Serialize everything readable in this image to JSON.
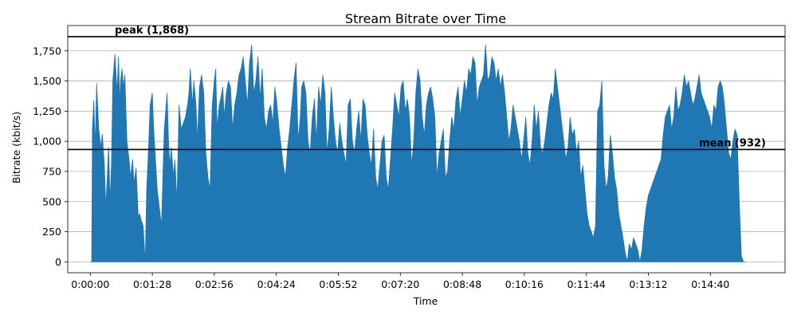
{
  "chart_data": {
    "type": "area",
    "title": "Stream Bitrate over Time",
    "xlabel": "Time",
    "ylabel": "Bitrate (kbit/s)",
    "x_unit": "seconds",
    "xlim": [
      -32,
      986
    ],
    "ylim": [
      -90,
      1960
    ],
    "yticks": [
      0,
      250,
      500,
      750,
      1000,
      1250,
      1500,
      1750
    ],
    "ytick_labels": [
      "0",
      "250",
      "500",
      "750",
      "1,000",
      "1,250",
      "1,500",
      "1,750"
    ],
    "xticks": [
      0,
      88,
      176,
      264,
      352,
      440,
      528,
      616,
      704,
      792,
      880
    ],
    "xtick_labels": [
      "0:00:00",
      "0:01:28",
      "0:02:56",
      "0:04:24",
      "0:05:52",
      "0:07:20",
      "0:08:48",
      "0:10:16",
      "0:11:44",
      "0:13:12",
      "0:14:40"
    ],
    "grid": "horizontal",
    "color": "#1f77b4",
    "reference_lines": [
      {
        "y": 1868,
        "label": "peak (1,868)",
        "label_position": "left"
      },
      {
        "y": 932,
        "label": "mean (932)",
        "label_position": "right"
      }
    ],
    "series": [
      {
        "x": [
          0,
          2,
          3,
          5,
          7,
          9,
          12,
          15,
          17,
          20,
          22,
          24,
          26,
          28,
          30,
          32,
          35,
          38,
          40,
          42,
          43,
          45,
          47,
          49,
          52,
          55,
          57,
          60,
          62,
          65,
          68,
          70,
          72,
          75,
          78,
          80,
          82,
          85,
          88,
          90,
          93,
          95,
          98,
          101,
          103,
          105,
          107,
          109,
          111,
          113,
          115,
          118,
          120,
          123,
          126,
          129,
          132,
          135,
          138,
          140,
          142,
          145,
          147,
          150,
          152,
          155,
          158,
          161,
          164,
          167,
          170,
          173,
          176,
          178,
          180,
          183,
          185,
          188,
          190,
          193,
          196,
          199,
          202,
          205,
          208,
          211,
          214,
          217,
          220,
          223,
          226,
          229,
          232,
          235,
          238,
          241,
          244,
          247,
          250,
          253,
          256,
          259,
          262,
          265,
          268,
          271,
          274,
          277,
          280,
          283,
          286,
          289,
          292,
          295,
          298,
          300,
          303,
          306,
          309,
          312,
          315,
          318,
          321,
          324,
          327,
          330,
          333,
          336,
          339,
          342,
          345,
          348,
          351,
          354,
          357,
          360,
          363,
          366,
          369,
          372,
          375,
          378,
          381,
          384,
          387,
          390,
          393,
          396,
          399,
          402,
          405,
          408,
          411,
          414,
          417,
          420,
          423,
          426,
          429,
          432,
          435,
          438,
          441,
          444,
          447,
          450,
          453,
          456,
          459,
          462,
          465,
          468,
          471,
          474,
          477,
          480,
          483,
          486,
          489,
          492,
          495,
          498,
          501,
          504,
          507,
          510,
          513,
          516,
          519,
          522,
          525,
          528,
          531,
          534,
          537,
          540,
          543,
          546,
          549,
          552,
          555,
          558,
          561,
          564,
          567,
          570,
          573,
          576,
          579,
          582,
          585,
          588,
          591,
          594,
          597,
          600,
          603,
          606,
          609,
          612,
          615,
          618,
          621,
          624,
          627,
          630,
          633,
          636,
          639,
          642,
          645,
          648,
          651,
          654,
          657,
          660,
          663,
          666,
          669,
          672,
          675,
          678,
          681,
          684,
          687,
          690,
          693,
          696,
          699,
          702,
          705,
          708,
          711,
          714,
          717,
          720,
          723,
          726,
          729,
          732,
          735,
          738,
          741,
          744,
          747,
          750,
          753,
          756,
          759,
          762,
          765,
          768,
          771,
          774,
          777,
          780,
          783,
          786,
          789,
          792,
          795,
          798,
          801,
          804,
          807,
          810,
          813,
          816,
          819,
          822,
          825,
          828,
          831,
          834,
          837,
          840,
          843,
          846,
          849,
          852,
          855,
          858,
          861,
          864,
          867,
          870,
          873,
          876,
          879,
          882,
          885,
          888,
          891,
          894,
          897,
          900,
          903,
          906,
          909,
          912,
          915,
          918,
          921,
          924,
          927,
          930
        ],
        "values": [
          0,
          0,
          1100,
          1340,
          950,
          1480,
          1100,
          950,
          1060,
          800,
          450,
          700,
          950,
          500,
          800,
          1500,
          1720,
          1400,
          1700,
          1300,
          1500,
          1600,
          1450,
          1550,
          1000,
          850,
          700,
          850,
          650,
          780,
          380,
          400,
          350,
          300,
          0,
          600,
          850,
          1300,
          1400,
          1100,
          800,
          600,
          450,
          300,
          700,
          1100,
          1250,
          1400,
          1000,
          800,
          950,
          700,
          850,
          500,
          1300,
          1100,
          1150,
          1200,
          1300,
          1400,
          1600,
          1300,
          1500,
          1300,
          1000,
          1450,
          1550,
          1400,
          900,
          700,
          600,
          1300,
          1500,
          1600,
          1100,
          1300,
          1350,
          1450,
          1200,
          1400,
          1500,
          1450,
          1100,
          1300,
          1400,
          1550,
          1600,
          1700,
          1500,
          1300,
          1650,
          1800,
          1400,
          1500,
          1700,
          1350,
          1600,
          1200,
          1100,
          1250,
          1300,
          1150,
          1450,
          1300,
          1100,
          950,
          800,
          700,
          950,
          1100,
          1300,
          1500,
          1650,
          1000,
          1200,
          1450,
          1500,
          1400,
          1000,
          900,
          1200,
          1350,
          1000,
          1450,
          1300,
          1550,
          1400,
          900,
          1100,
          1450,
          1200,
          1000,
          900,
          1150,
          1000,
          900,
          800,
          1300,
          1350,
          1000,
          900,
          1100,
          1250,
          1000,
          1350,
          1300,
          1050,
          900,
          800,
          1100,
          700,
          600,
          800,
          1000,
          1050,
          700,
          600,
          850,
          1100,
          1400,
          1300,
          1200,
          1450,
          1500,
          1250,
          1350,
          1200,
          800,
          1000,
          1400,
          1600,
          1500,
          1200,
          1050,
          1300,
          1400,
          1450,
          1350,
          1200,
          700,
          900,
          1000,
          1100,
          700,
          750,
          1000,
          1200,
          1100,
          1350,
          1450,
          1200,
          1350,
          1500,
          1400,
          1600,
          1550,
          1700,
          1650,
          1300,
          1450,
          1500,
          1550,
          1800,
          1500,
          1550,
          1700,
          1650,
          1500,
          1600,
          1450,
          1550,
          1400,
          1200,
          1000,
          1100,
          1300,
          1200,
          1100,
          1000,
          850,
          1000,
          1200,
          900,
          800,
          1000,
          1300,
          1100,
          1250,
          950,
          900,
          1000,
          1150,
          1300,
          1400,
          1350,
          1600,
          1450,
          1300,
          1150,
          1000,
          850,
          950,
          1200,
          1050,
          1100,
          900,
          1000,
          700,
          800,
          600,
          400,
          300,
          250,
          200,
          300,
          1250,
          1300,
          1500,
          800,
          600,
          700,
          1050,
          900,
          700,
          600,
          400,
          300,
          200,
          80,
          0,
          150,
          100,
          200,
          150,
          100,
          0,
          100,
          300,
          450,
          550,
          600,
          650,
          700,
          750,
          800,
          850,
          1050,
          1200,
          1250,
          1300,
          1100,
          1200,
          1450,
          1250,
          1300,
          1400,
          1550,
          1450,
          1500,
          1400,
          1300,
          1350,
          1450,
          1550,
          1400,
          1350,
          1300,
          1250,
          1200,
          1100,
          1300,
          1250,
          1450,
          1500,
          1450,
          1300,
          1100,
          900,
          850,
          1000,
          1100,
          1050,
          500,
          50,
          0,
          0
        ]
      }
    ]
  }
}
